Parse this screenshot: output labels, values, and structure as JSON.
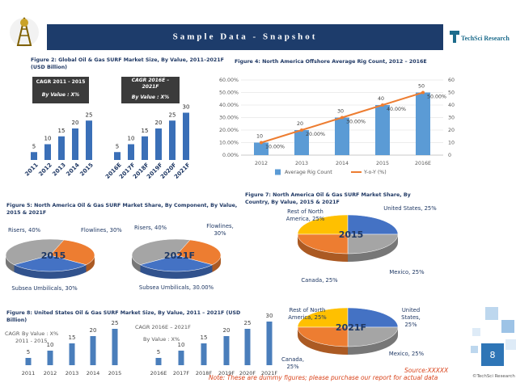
{
  "header": {
    "title": "Sample Data - Snapshot",
    "logo": "TechSci Research"
  },
  "chart_data": [
    {
      "type": "bar",
      "title": "Figure 2: Global Oil & Gas SURF Market Size, By Value, 2011–2021F (USD Billion)",
      "categories": [
        "2011",
        "2012",
        "2013",
        "2014",
        "2015",
        "2016E",
        "2017F",
        "2018F",
        "2019F",
        "2020F",
        "2021F"
      ],
      "values": [
        5,
        10,
        15,
        20,
        25,
        5,
        10,
        15,
        20,
        25,
        30
      ],
      "color": "#3a6fb7",
      "annotations": [
        "CAGR 2011 - 2015",
        "By Value : X%",
        "CAGR 2016E – 2021F",
        "By Value : X%"
      ]
    },
    {
      "type": "combo",
      "title": "Figure 4: North America Offshore Average Rig Count, 2012 – 2016E",
      "categories": [
        "2012",
        "2013",
        "2014",
        "2015",
        "2016E"
      ],
      "ylim": [
        0,
        60
      ],
      "yticks": [
        {
          "value": 0,
          "label": "0.00%"
        },
        {
          "value": 10,
          "label": "10.00%"
        },
        {
          "value": 20,
          "label": "20.00%"
        },
        {
          "value": 30,
          "label": "30.00%"
        },
        {
          "value": 40,
          "label": "40.00%"
        },
        {
          "value": 50,
          "label": "50.00%"
        },
        {
          "value": 60,
          "label": "60.00%"
        }
      ],
      "y2lim": [
        0,
        60
      ],
      "y2ticks": [
        0,
        10,
        20,
        30,
        40,
        50,
        60
      ],
      "grid": true,
      "legend": "bottom",
      "series": [
        {
          "name": "Average Rig Count",
          "type": "bar",
          "axis": "y2",
          "color": "#5b9bd5",
          "values": [
            10,
            20,
            30,
            40,
            50
          ]
        },
        {
          "name": "Y-o-Y (%)",
          "type": "line",
          "color": "#ed7d31",
          "values": [
            10,
            20,
            30,
            40,
            50
          ],
          "value_labels": [
            "10.00%",
            "20.00%",
            "30.00%",
            "40.00%",
            "50.00%"
          ]
        }
      ]
    },
    {
      "type": "pie",
      "title": "Figure 5: North America Oil & Gas SURF Market Share, By Component, By Value, 2015 & 2021F",
      "colors": [
        "#a5a5a5",
        "#ed7d31",
        "#4472c4"
      ],
      "pies": [
        {
          "name": "2015",
          "values": [
            40,
            30,
            30
          ],
          "value_labels": [
            "Risers, 40%",
            "Flowlines, 30%",
            "Subsea Umbilicals, 30%"
          ]
        },
        {
          "name": "2021F",
          "values": [
            40,
            30,
            30
          ],
          "value_labels": [
            "Risers, 40%",
            "Flowlines, 30%",
            "Subsea Umbilicals, 30.00%"
          ]
        }
      ]
    },
    {
      "type": "pie",
      "title": "Figure 7: North America Oil & Gas SURF Market Share, By Country, By Value, 2015 & 2021F",
      "colors": [
        "#ffc000",
        "#4472c4",
        "#a5a5a5",
        "#ed7d31"
      ],
      "pies": [
        {
          "name": "2015",
          "values": [
            25,
            25,
            25,
            25
          ],
          "value_labels": [
            "Rest of North America, 25%",
            "United States, 25%",
            "Mexico, 25%",
            "Canada, 25%"
          ]
        },
        {
          "name": "2021F",
          "values": [
            25,
            25,
            25,
            25
          ],
          "value_labels": [
            "Rest of North America, 25%",
            "United States, 25%",
            "Mexico, 25%",
            "Canada, 25%"
          ]
        }
      ]
    },
    {
      "type": "bar",
      "title": "Figure 8: United States Oil & Gas SURF Market Size, By Value, 2011 – 2021F (USD Billion)",
      "categories": [
        "2011",
        "2012",
        "2013",
        "2014",
        "2015",
        "2016E",
        "2017F",
        "2018F",
        "2019F",
        "2020F",
        "2021F"
      ],
      "values": [
        5,
        10,
        15,
        20,
        25,
        5,
        10,
        15,
        20,
        25,
        30
      ],
      "color": "#4a7ebb",
      "annotations": [
        "CAGR",
        "By Value : X%",
        "2011 - 2015",
        "CAGR 2016E – 2021F",
        "By Value : X%"
      ]
    }
  ],
  "footer": {
    "note": "Note: These are dummy figures; please purchase our report for actual data",
    "source": "Source:XXXXX",
    "page": "8",
    "copyright": "©TechSci Research"
  }
}
